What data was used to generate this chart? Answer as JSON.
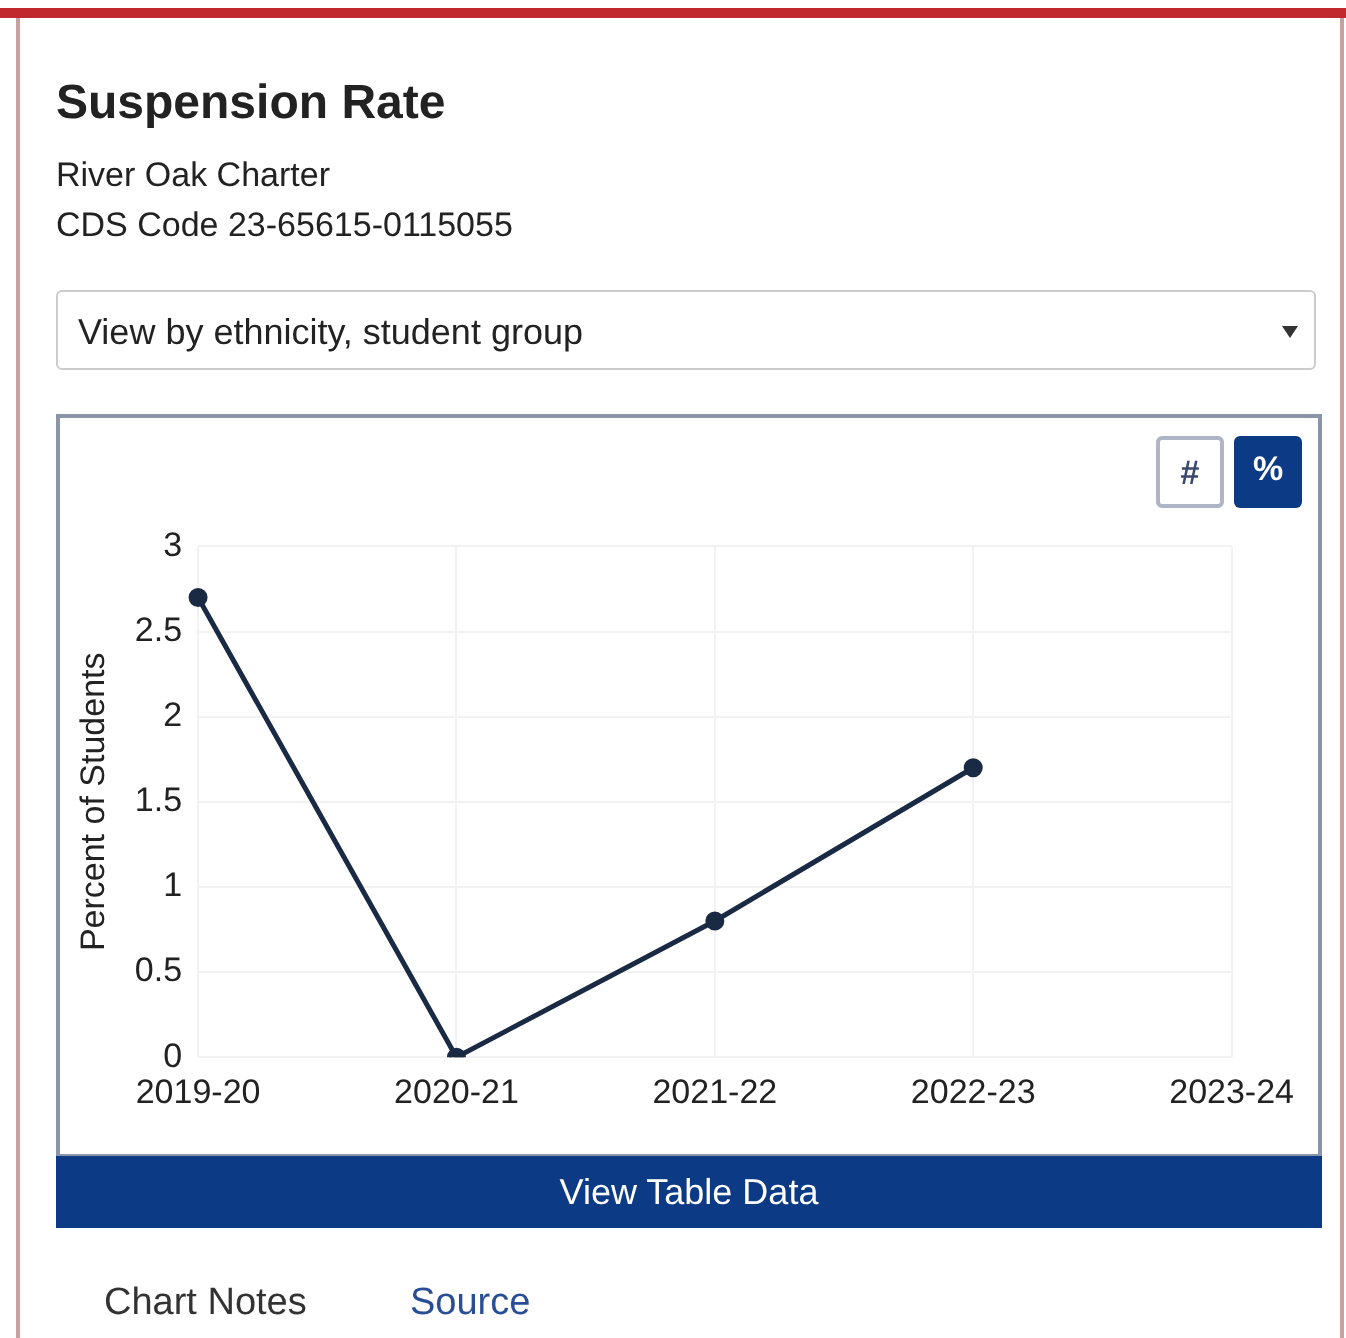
{
  "chart_data": {
    "type": "line",
    "title": "Suspension Rate",
    "subtitle": "River Oak Charter\nCDS Code 23-65615-0115055",
    "ylabel": "Percent of Students",
    "categories": [
      "2019-20",
      "2020-21",
      "2021-22",
      "2022-23",
      "2023-24"
    ],
    "series": [
      {
        "color": "#1a2a44",
        "values": [
          2.7,
          0,
          0.8,
          1.7,
          null
        ]
      }
    ],
    "ylim": [
      0,
      3
    ],
    "yticks": [
      0,
      0.5,
      1,
      1.5,
      2,
      2.5,
      3
    ],
    "grid": true,
    "legend": false,
    "marker": "circle",
    "line_style": "solid",
    "annotations": [
      "View by ethnicity, student group",
      "#",
      "%",
      "View Table Data",
      "Chart Notes",
      "Source"
    ]
  }
}
